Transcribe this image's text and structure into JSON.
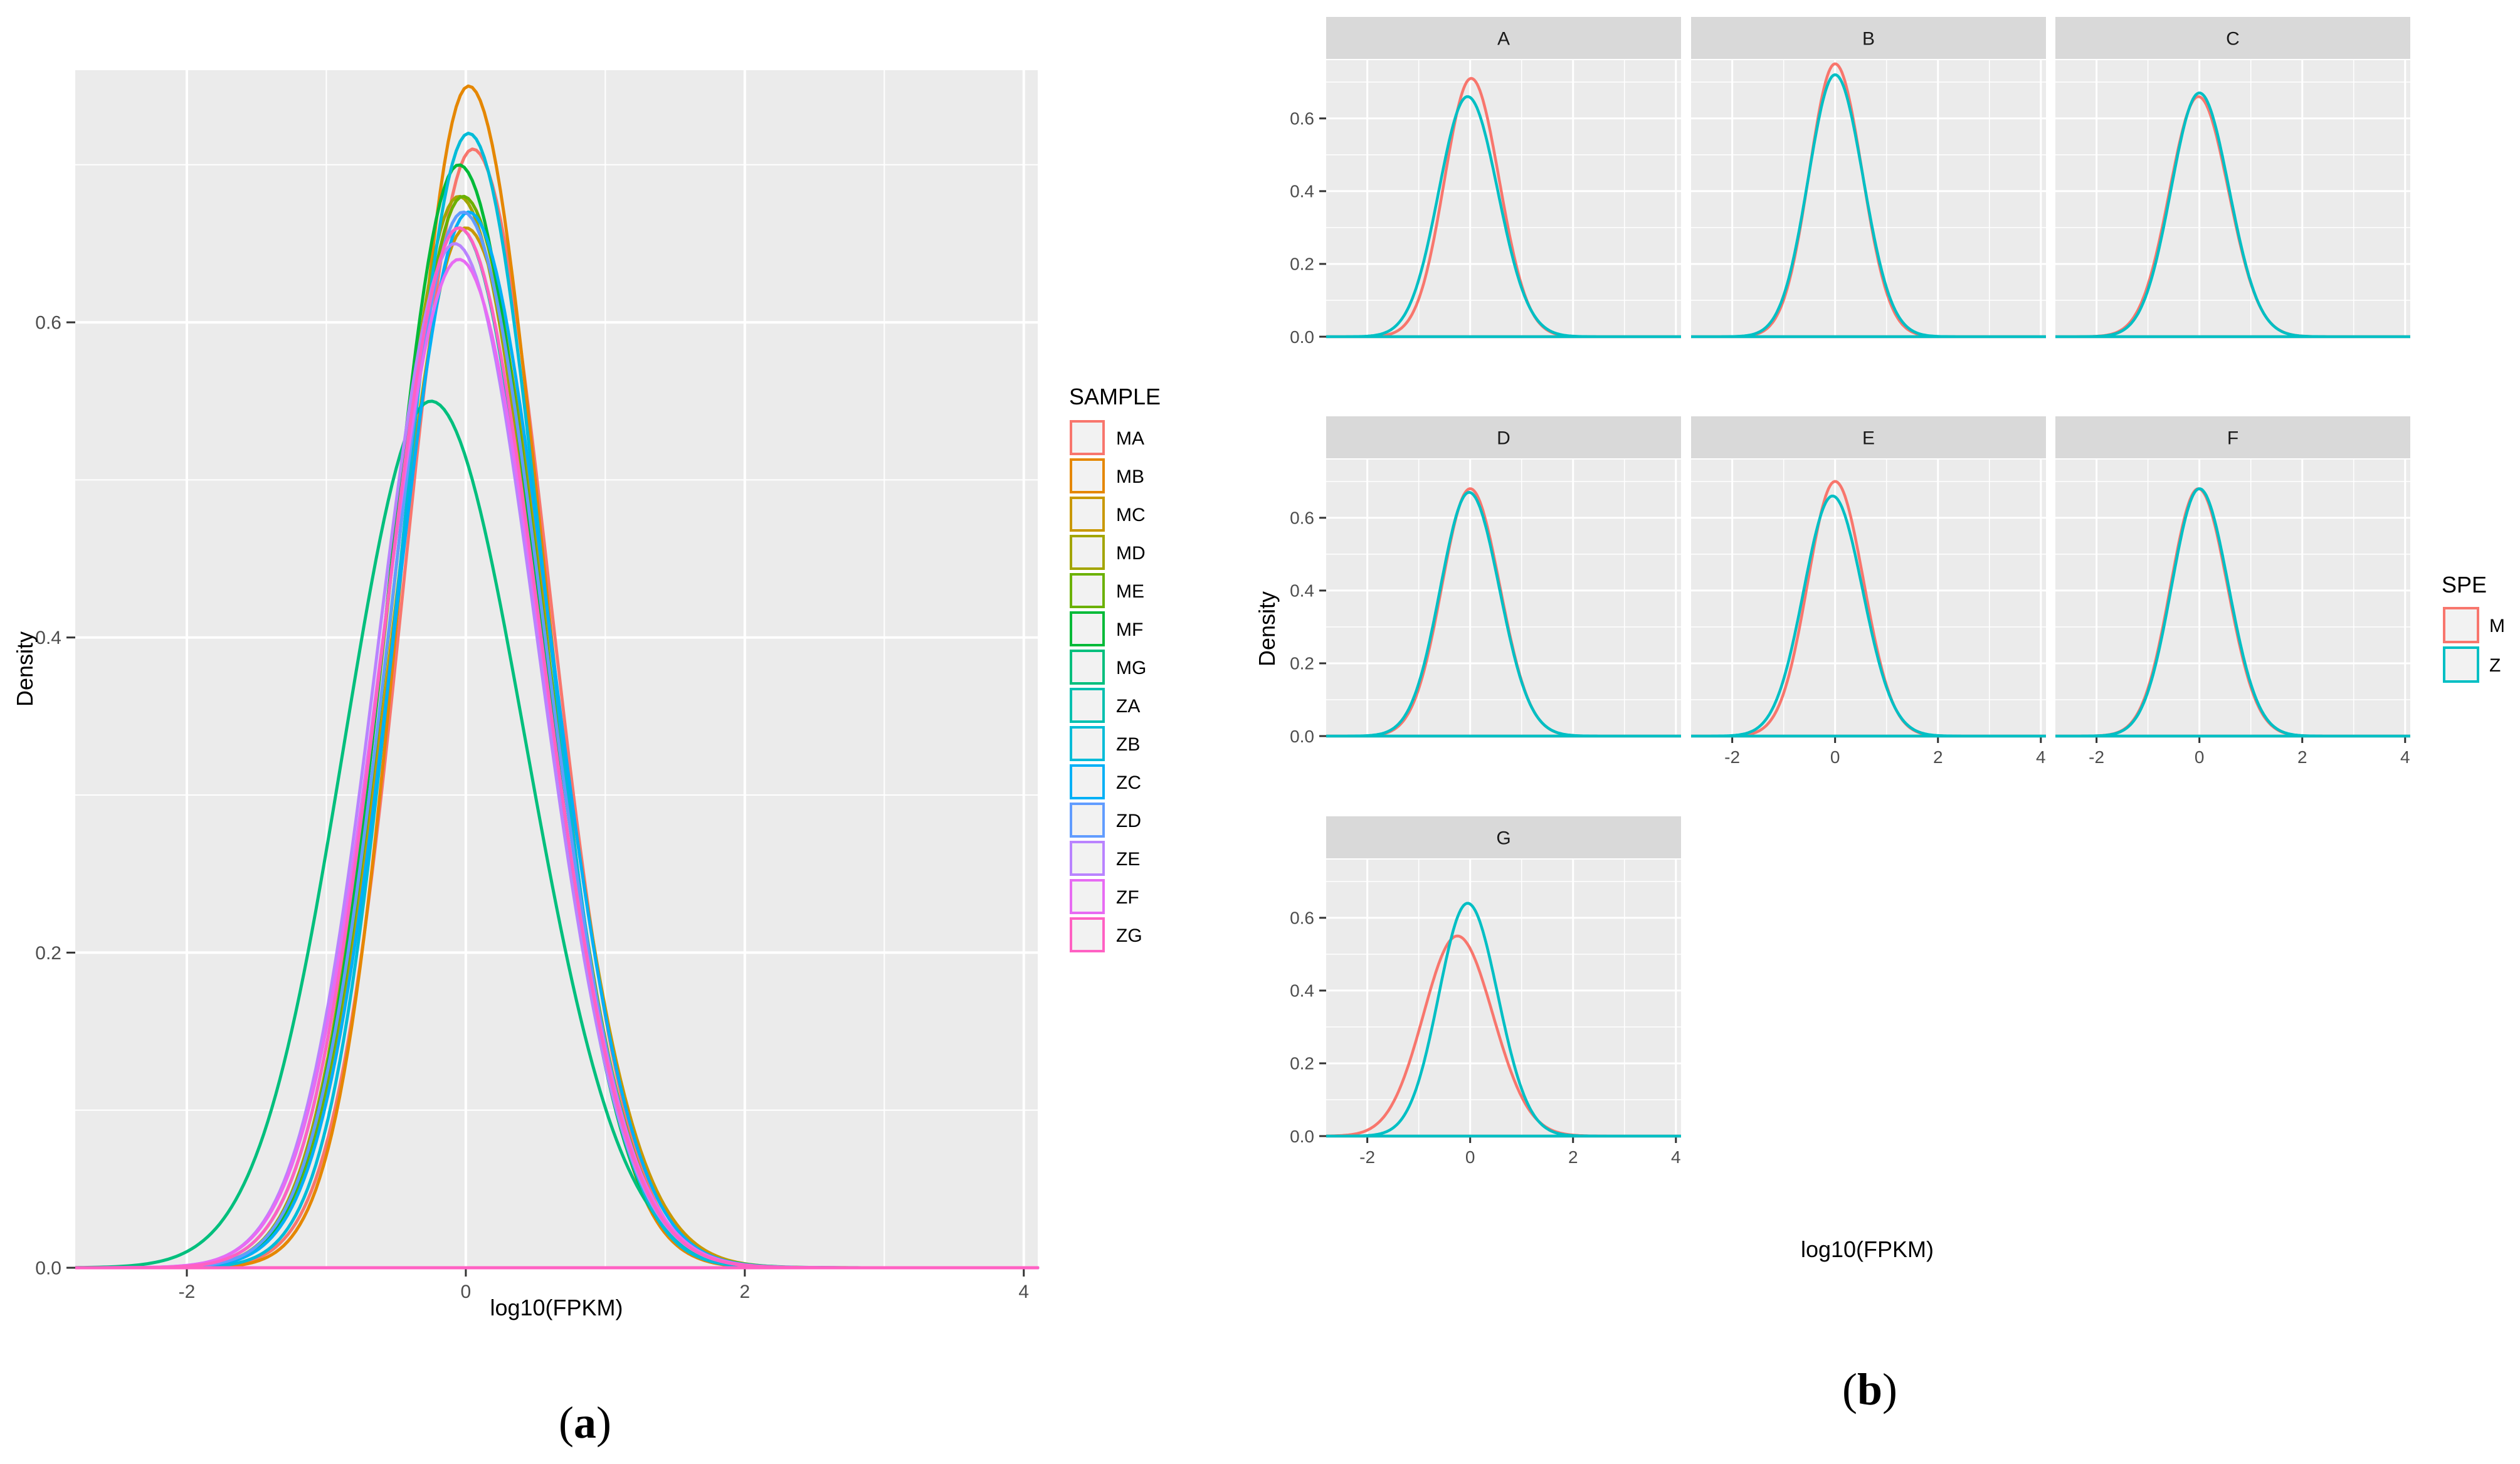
{
  "colors": {
    "panel_bg": "#EBEBEB",
    "grid": "#FFFFFF",
    "strip_bg": "#D9D9D9",
    "text": "#4D4D4D",
    "title_text": "#000000"
  },
  "panels": {
    "a": {
      "caption_prefix": "(",
      "caption_letter": "a",
      "caption_suffix": ")"
    },
    "b": {
      "caption_prefix": "(",
      "caption_letter": "b",
      "caption_suffix": ")"
    }
  },
  "chart_data": [
    {
      "id": "a",
      "type": "line",
      "kind": "density",
      "xlabel": "log10(FPKM)",
      "ylabel": "Density",
      "xlim": [
        -2.8,
        4.1
      ],
      "ylim": [
        0,
        0.76
      ],
      "x_ticks": [
        -2,
        0,
        2,
        4
      ],
      "x_tick_labels": [
        "-2",
        "0",
        "2",
        "4"
      ],
      "y_ticks": [
        0.0,
        0.2,
        0.4,
        0.6
      ],
      "y_tick_labels": [
        "0.0",
        "0.2",
        "0.4",
        "0.6"
      ],
      "grid": true,
      "legend": {
        "title": "SAMPLE",
        "position": "right"
      },
      "series": [
        {
          "name": "MA",
          "color": "#F8766D",
          "peak": 0.71,
          "mode": 0.05,
          "sd_left": 0.5,
          "sd_right": 0.55
        },
        {
          "name": "MB",
          "color": "#E58700",
          "peak": 0.75,
          "mode": 0.02,
          "sd_left": 0.47,
          "sd_right": 0.53
        },
        {
          "name": "MC",
          "color": "#C99800",
          "peak": 0.66,
          "mode": 0.0,
          "sd_left": 0.53,
          "sd_right": 0.6
        },
        {
          "name": "MD",
          "color": "#A3A500",
          "peak": 0.68,
          "mode": -0.05,
          "sd_left": 0.52,
          "sd_right": 0.58
        },
        {
          "name": "ME",
          "color": "#6BB100",
          "peak": 0.68,
          "mode": -0.02,
          "sd_left": 0.52,
          "sd_right": 0.58
        },
        {
          "name": "MF",
          "color": "#00BA38",
          "peak": 0.7,
          "mode": -0.05,
          "sd_left": 0.51,
          "sd_right": 0.57
        },
        {
          "name": "MG",
          "color": "#00BF7D",
          "peak": 0.55,
          "mode": -0.25,
          "sd_left": 0.62,
          "sd_right": 0.68
        },
        {
          "name": "ZA",
          "color": "#00C0AF",
          "peak": 0.66,
          "mode": -0.05,
          "sd_left": 0.54,
          "sd_right": 0.58
        },
        {
          "name": "ZB",
          "color": "#00BCD8",
          "peak": 0.72,
          "mode": 0.02,
          "sd_left": 0.5,
          "sd_right": 0.54
        },
        {
          "name": "ZC",
          "color": "#00B0F6",
          "peak": 0.67,
          "mode": 0.02,
          "sd_left": 0.53,
          "sd_right": 0.58
        },
        {
          "name": "ZD",
          "color": "#619CFF",
          "peak": 0.67,
          "mode": -0.02,
          "sd_left": 0.53,
          "sd_right": 0.58
        },
        {
          "name": "ZE",
          "color": "#B983FF",
          "peak": 0.65,
          "mode": -0.08,
          "sd_left": 0.55,
          "sd_right": 0.6
        },
        {
          "name": "ZF",
          "color": "#E76BF3",
          "peak": 0.64,
          "mode": -0.05,
          "sd_left": 0.56,
          "sd_right": 0.6
        },
        {
          "name": "ZG",
          "color": "#FF61C3",
          "peak": 0.66,
          "mode": -0.05,
          "sd_left": 0.54,
          "sd_right": 0.59
        }
      ]
    },
    {
      "id": "b",
      "type": "line",
      "kind": "density-facets",
      "xlabel": "log10(FPKM)",
      "ylabel": "Density",
      "xlim": [
        -2.8,
        4.1
      ],
      "ylim": [
        0,
        0.76
      ],
      "x_ticks": [
        -2,
        0,
        2,
        4
      ],
      "x_tick_labels": [
        "-2",
        "0",
        "2",
        "4"
      ],
      "y_ticks": [
        0.0,
        0.2,
        0.4,
        0.6
      ],
      "y_tick_labels": [
        "0.0",
        "0.2",
        "0.4",
        "0.6"
      ],
      "grid": true,
      "legend": {
        "title": "SPE",
        "position": "right",
        "entries": [
          {
            "name": "M",
            "color": "#F8766D"
          },
          {
            "name": "Z",
            "color": "#00BFC4"
          }
        ]
      },
      "facets": [
        {
          "label": "A",
          "M": {
            "peak": 0.71,
            "mode": 0.02,
            "sd": 0.52
          },
          "Z": {
            "peak": 0.66,
            "mode": -0.05,
            "sd": 0.56
          }
        },
        {
          "label": "B",
          "M": {
            "peak": 0.75,
            "mode": 0.0,
            "sd": 0.5
          },
          "Z": {
            "peak": 0.72,
            "mode": 0.0,
            "sd": 0.52
          }
        },
        {
          "label": "C",
          "M": {
            "peak": 0.66,
            "mode": -0.02,
            "sd": 0.56
          },
          "Z": {
            "peak": 0.67,
            "mode": 0.0,
            "sd": 0.55
          }
        },
        {
          "label": "D",
          "M": {
            "peak": 0.68,
            "mode": 0.0,
            "sd": 0.55
          },
          "Z": {
            "peak": 0.67,
            "mode": -0.02,
            "sd": 0.56
          }
        },
        {
          "label": "E",
          "M": {
            "peak": 0.7,
            "mode": 0.0,
            "sd": 0.53
          },
          "Z": {
            "peak": 0.66,
            "mode": -0.05,
            "sd": 0.56
          }
        },
        {
          "label": "F",
          "M": {
            "peak": 0.68,
            "mode": -0.02,
            "sd": 0.54
          },
          "Z": {
            "peak": 0.68,
            "mode": 0.0,
            "sd": 0.54
          }
        },
        {
          "label": "G",
          "M": {
            "peak": 0.55,
            "mode": -0.25,
            "sd": 0.66
          },
          "Z": {
            "peak": 0.64,
            "mode": -0.05,
            "sd": 0.56
          }
        }
      ]
    }
  ]
}
